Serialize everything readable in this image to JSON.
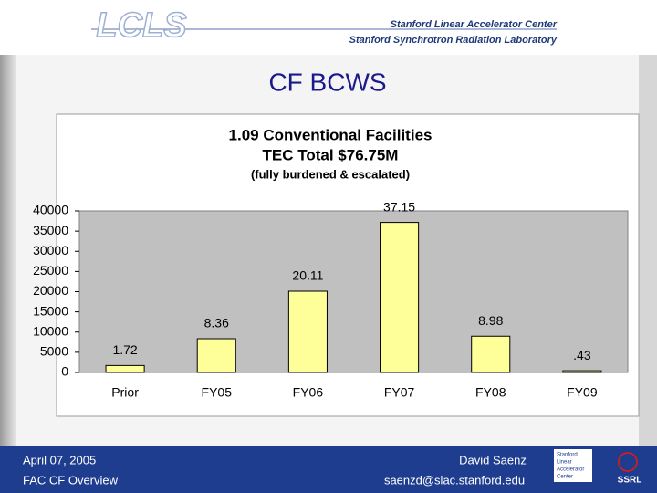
{
  "header": {
    "logo": "LCLS",
    "lab_1": "Stanford Linear Accelerator Center",
    "lab_2": "Stanford Synchrotron Radiation Laboratory"
  },
  "slide_title": "CF BCWS",
  "chart_data": {
    "type": "bar",
    "title": "1.09 Conventional Facilities",
    "subtitle": "TEC Total $76.75M",
    "note": "(fully burdened & escalated)",
    "categories": [
      "Prior",
      "FY05",
      "FY06",
      "FY07",
      "FY08",
      "FY09"
    ],
    "values": [
      1720,
      8360,
      20110,
      37150,
      8980,
      430
    ],
    "value_labels": [
      "1.72",
      "8.36",
      "20.11",
      "37.15",
      "8.98",
      ".43"
    ],
    "color": "#ffff99",
    "ylim": [
      0,
      40000
    ],
    "yticks": [
      0,
      5000,
      10000,
      15000,
      20000,
      25000,
      30000,
      35000,
      40000
    ],
    "grid": false
  },
  "footer": {
    "date": "April 07, 2005",
    "topic": "FAC CF Overview",
    "author": "David Saenz",
    "email": "saenzd@slac.stanford.edu"
  },
  "footer_logo": {
    "lines": [
      "Stanford",
      "Linear",
      "Accelerator",
      "Center"
    ],
    "ssrl": "SSRL"
  }
}
